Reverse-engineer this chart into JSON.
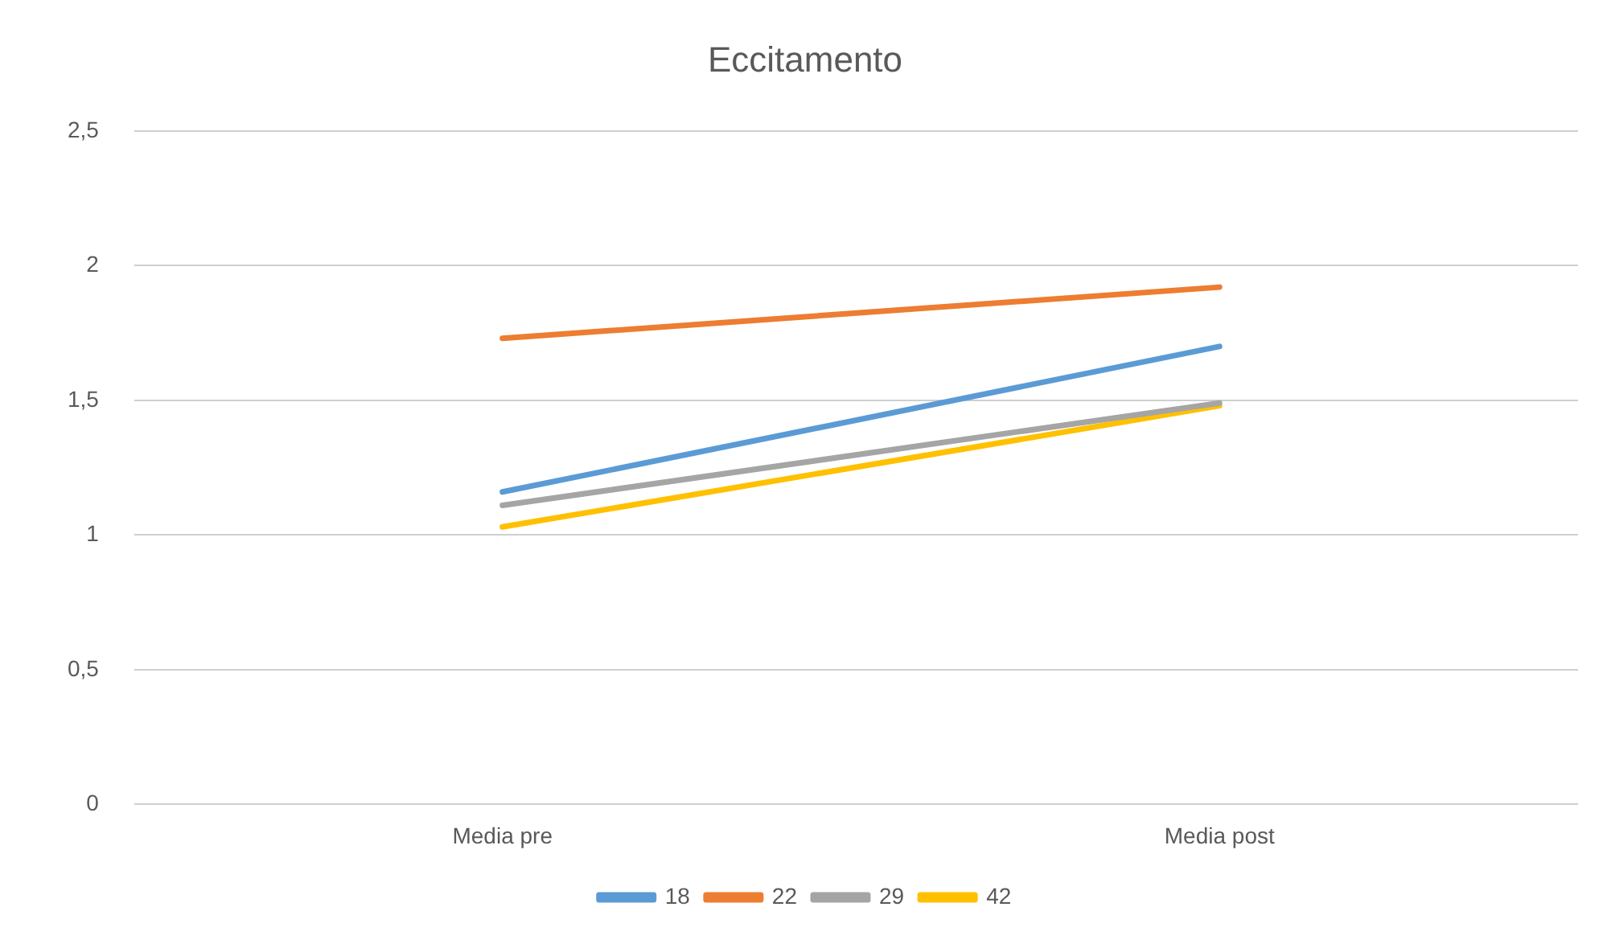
{
  "chart_data": {
    "type": "line",
    "title": "Eccitamento",
    "categories": [
      "Media pre",
      "Media post"
    ],
    "series": [
      {
        "name": "18",
        "color": "#5b9bd5",
        "values": [
          1.16,
          1.7
        ]
      },
      {
        "name": "22",
        "color": "#ed7d31",
        "values": [
          1.73,
          1.92
        ]
      },
      {
        "name": "29",
        "color": "#a5a5a5",
        "values": [
          1.11,
          1.49
        ]
      },
      {
        "name": "42",
        "color": "#ffc000",
        "values": [
          1.03,
          1.48
        ]
      }
    ],
    "ylim": [
      0,
      2.5
    ],
    "yticks": [
      {
        "value": 0,
        "label": "0"
      },
      {
        "value": 0.5,
        "label": "0,5"
      },
      {
        "value": 1,
        "label": "1"
      },
      {
        "value": 1.5,
        "label": "1,5"
      },
      {
        "value": 2,
        "label": "2"
      },
      {
        "value": 2.5,
        "label": "2,5"
      }
    ],
    "grid": "y",
    "legend": "bottom",
    "marker": "none",
    "line_style": "solid"
  }
}
